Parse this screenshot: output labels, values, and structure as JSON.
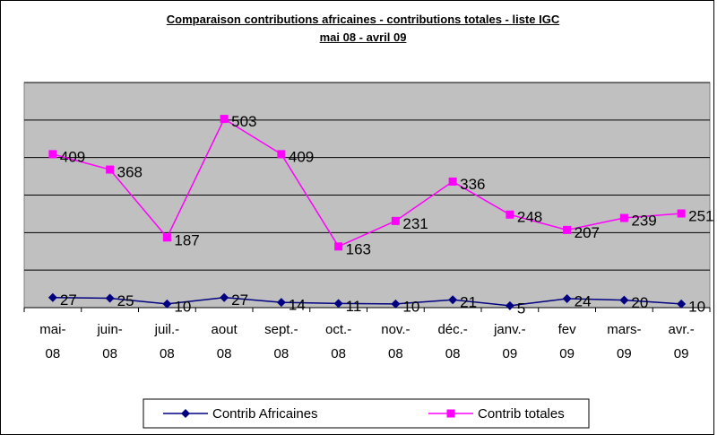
{
  "chart_data": {
    "type": "line",
    "title": "Comparaison contributions africaines - contributions totales - liste IGC mai 08 - avril 09",
    "categories": [
      "mai-08",
      "juin-08",
      "juil.-08",
      "aout 08",
      "sept.-08",
      "oct.-08",
      "nov.-08",
      "déc.-08",
      "janv.-09",
      "fev 09",
      "mars-09",
      "avr.-09"
    ],
    "series": [
      {
        "name": "Contrib Africaines",
        "color": "#000080",
        "marker": "diamond",
        "values": [
          27,
          25,
          10,
          27,
          14,
          11,
          10,
          21,
          5,
          24,
          20,
          10
        ]
      },
      {
        "name": "Contrib totales",
        "color": "#ff00ff",
        "marker": "square",
        "values": [
          409,
          368,
          187,
          503,
          409,
          163,
          231,
          336,
          248,
          207,
          239,
          251
        ]
      }
    ],
    "ylim": [
      0,
      600
    ],
    "yticks": [
      0,
      100,
      200,
      300,
      400,
      500,
      600
    ],
    "grid": true,
    "legend": "bottom"
  }
}
